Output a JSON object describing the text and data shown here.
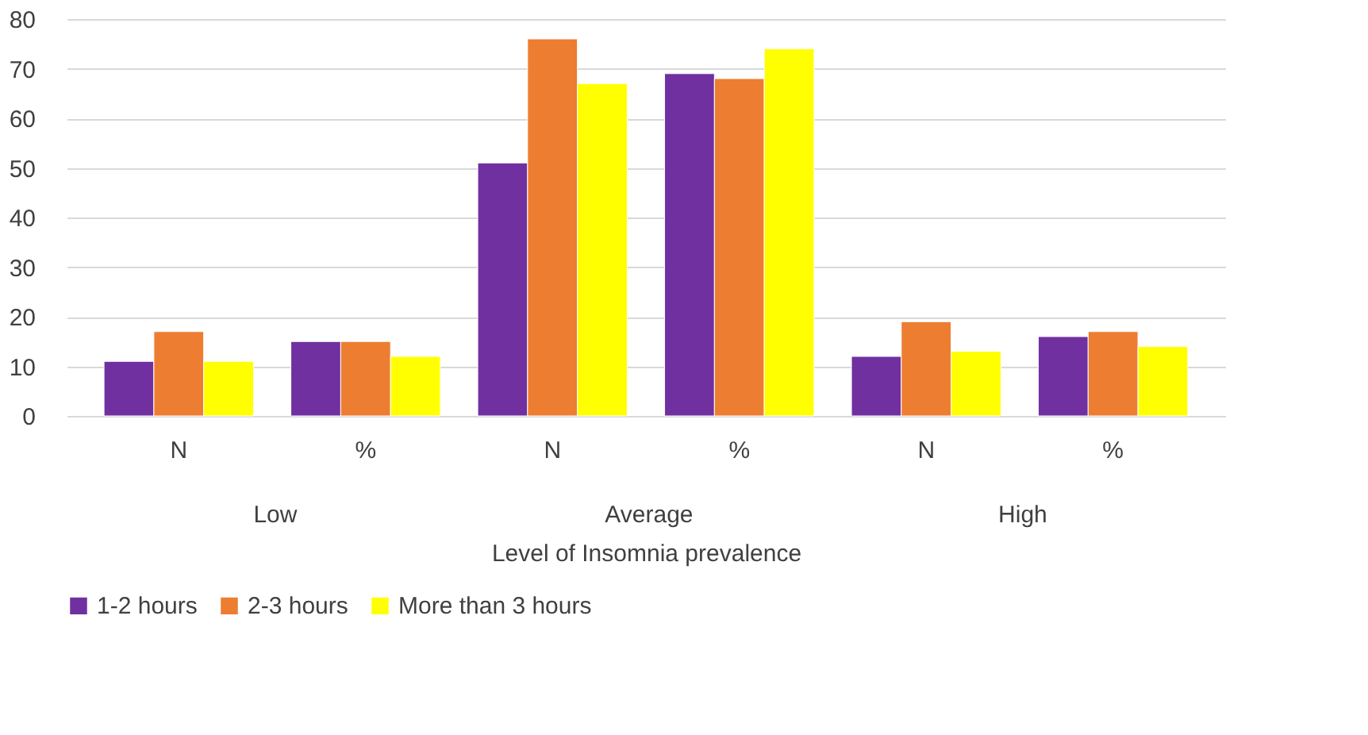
{
  "chart_data": {
    "type": "bar",
    "xlabel": "Level of Insomnia prevalence",
    "categories": [
      "N",
      "%",
      "N",
      "%",
      "N",
      "%"
    ],
    "annotations": [
      "Low",
      "Average",
      "High"
    ],
    "series": [
      {
        "name": "1-2 hours",
        "color": "#7030a0",
        "values": [
          11,
          15,
          51,
          69,
          12,
          16
        ]
      },
      {
        "name": "2-3 hours",
        "color": "#ed7d31",
        "values": [
          17,
          15,
          76,
          68,
          19,
          17
        ]
      },
      {
        "name": "More than 3 hours",
        "color": "#ffff00",
        "values": [
          11,
          12,
          67,
          74,
          13,
          14
        ]
      }
    ],
    "ylim": [
      0,
      80
    ],
    "yticks": [
      0,
      10,
      20,
      30,
      40,
      50,
      60,
      70,
      80
    ],
    "grid": "y",
    "legend": "bottom"
  }
}
